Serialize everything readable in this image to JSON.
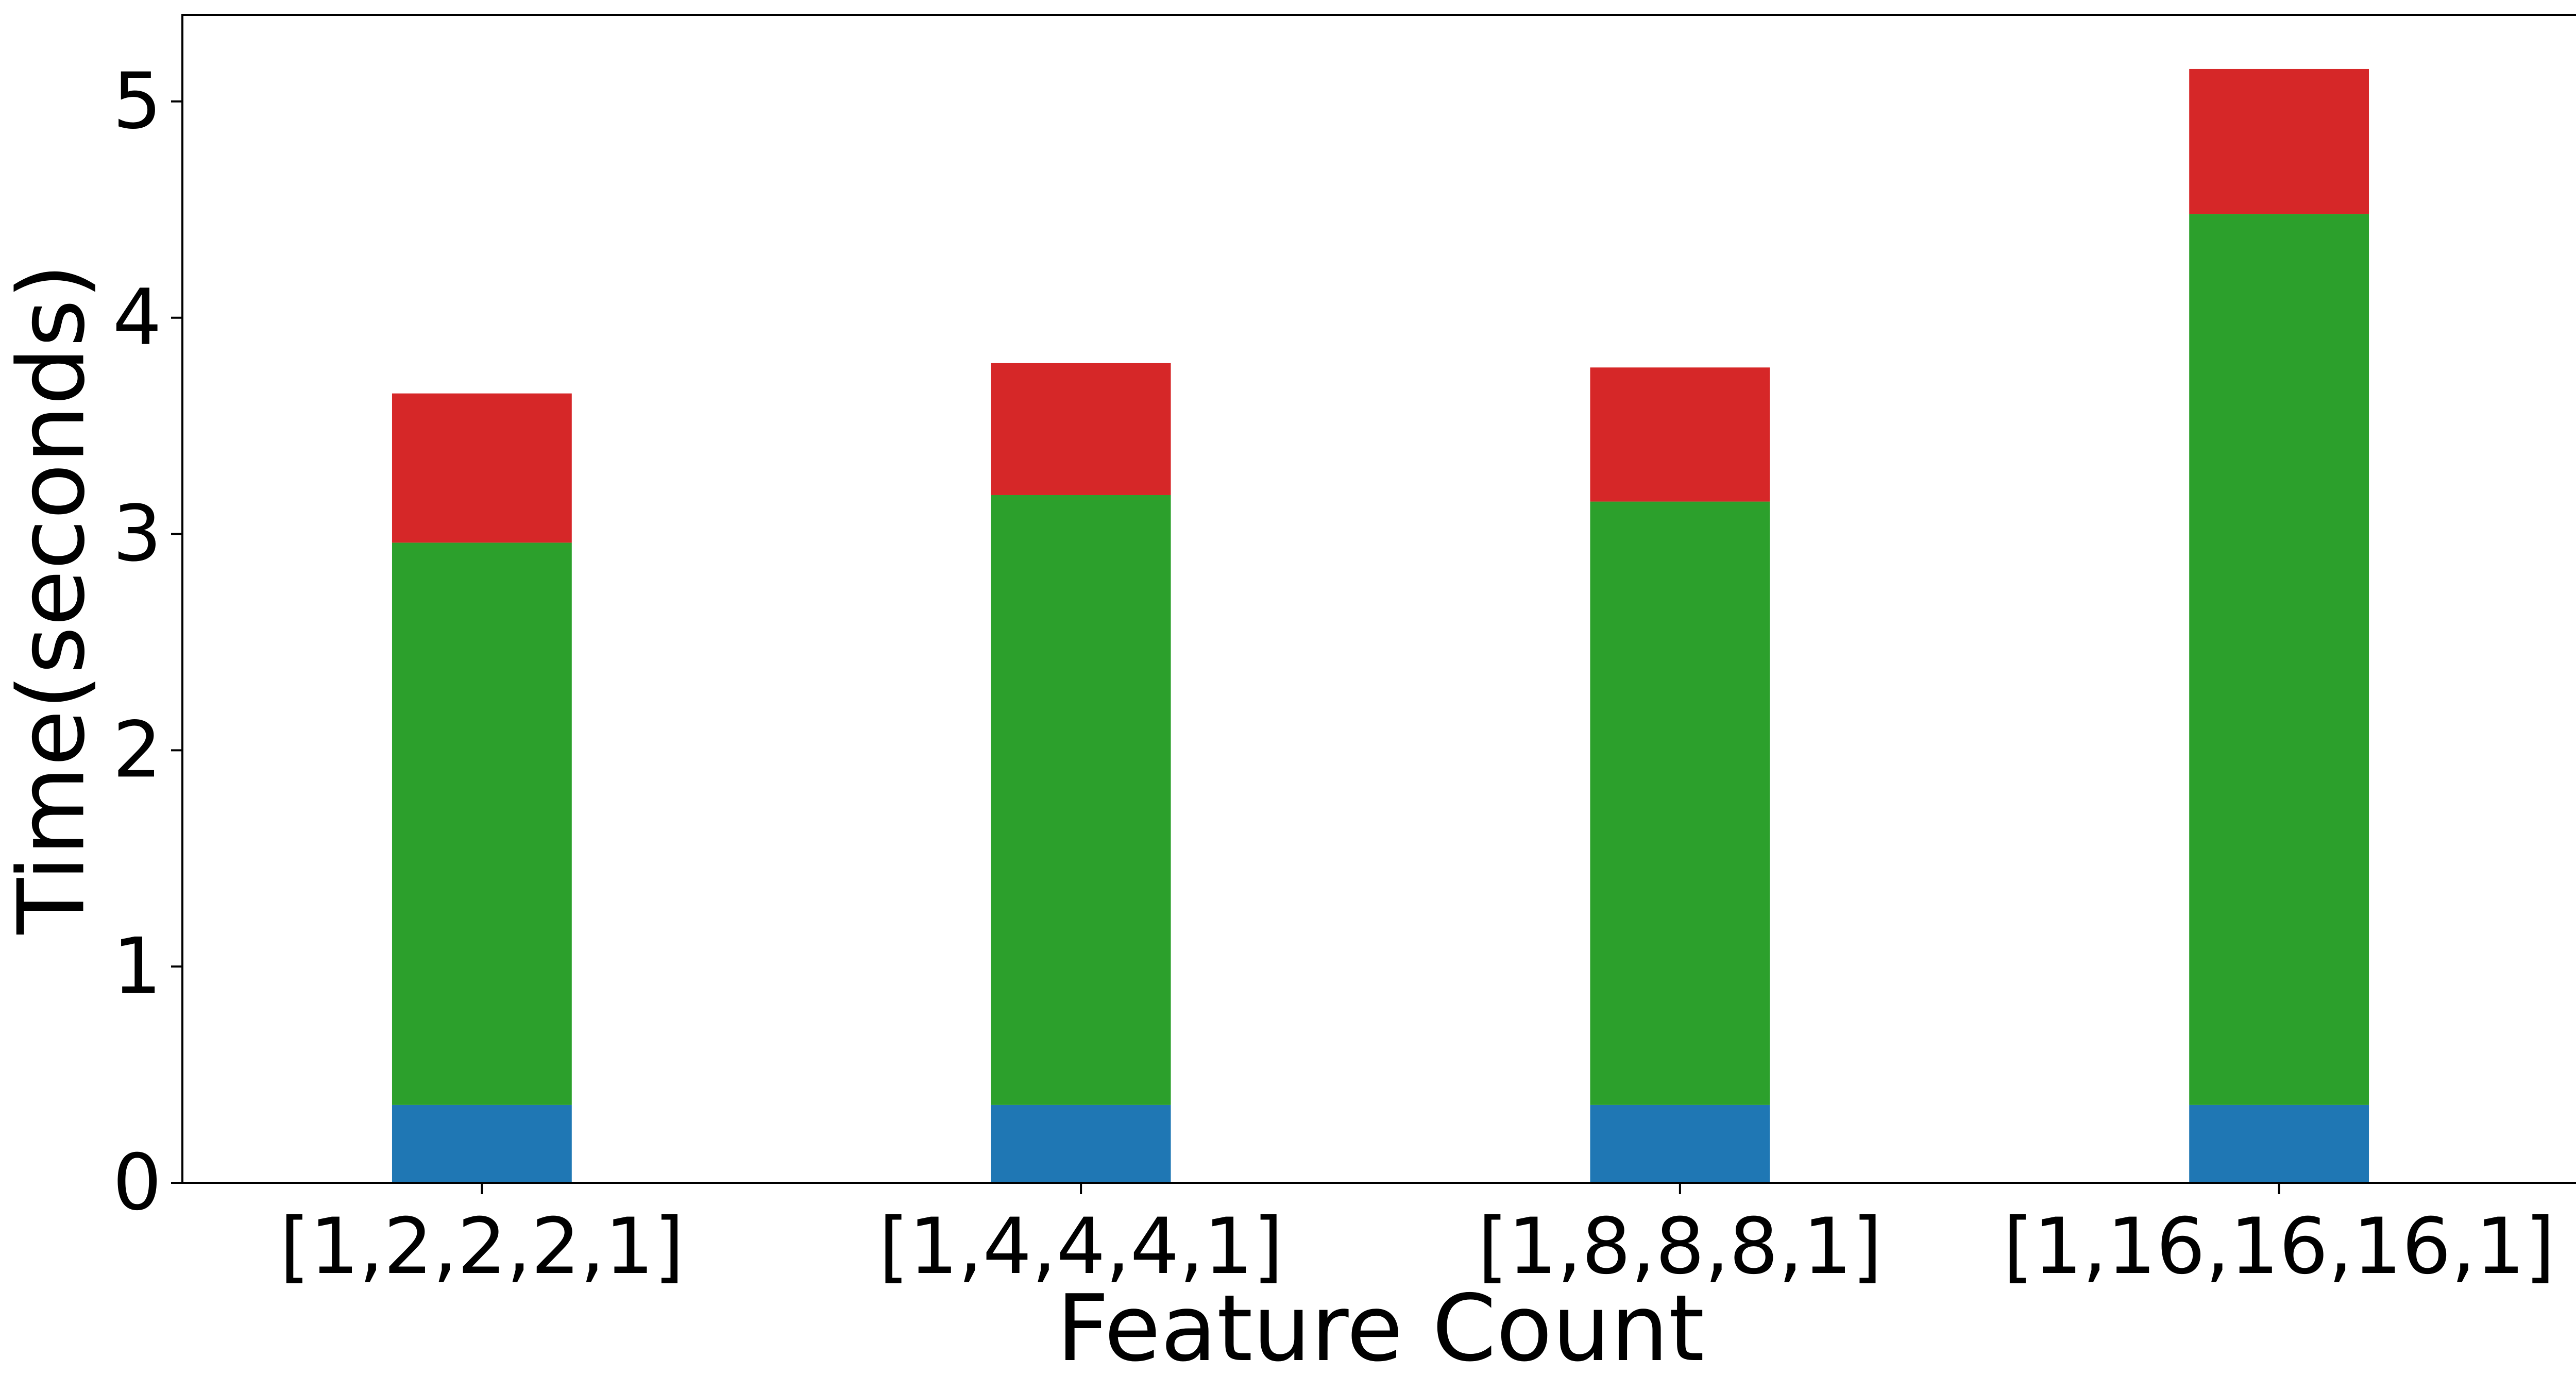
{
  "chart_data": {
    "type": "bar",
    "stacked": true,
    "xlabel": "Feature Count",
    "ylabel": "Time(seconds)",
    "ylim": [
      0,
      5.4
    ],
    "yticks": [
      0,
      1,
      2,
      3,
      4,
      5
    ],
    "grid": false,
    "categories": [
      "[1,2,2,2,1]",
      "[1,4,4,4,1]",
      "[1,8,8,8,1]",
      "[1,16,16,16,1]"
    ],
    "series": [
      {
        "color": "#1f77b4",
        "values": [
          0.36,
          0.36,
          0.36,
          0.36
        ]
      },
      {
        "color": "#2ca02c",
        "values": [
          2.6,
          2.82,
          2.79,
          4.12
        ]
      },
      {
        "color": "#d62728",
        "values": [
          0.69,
          0.61,
          0.62,
          0.67
        ]
      }
    ]
  }
}
